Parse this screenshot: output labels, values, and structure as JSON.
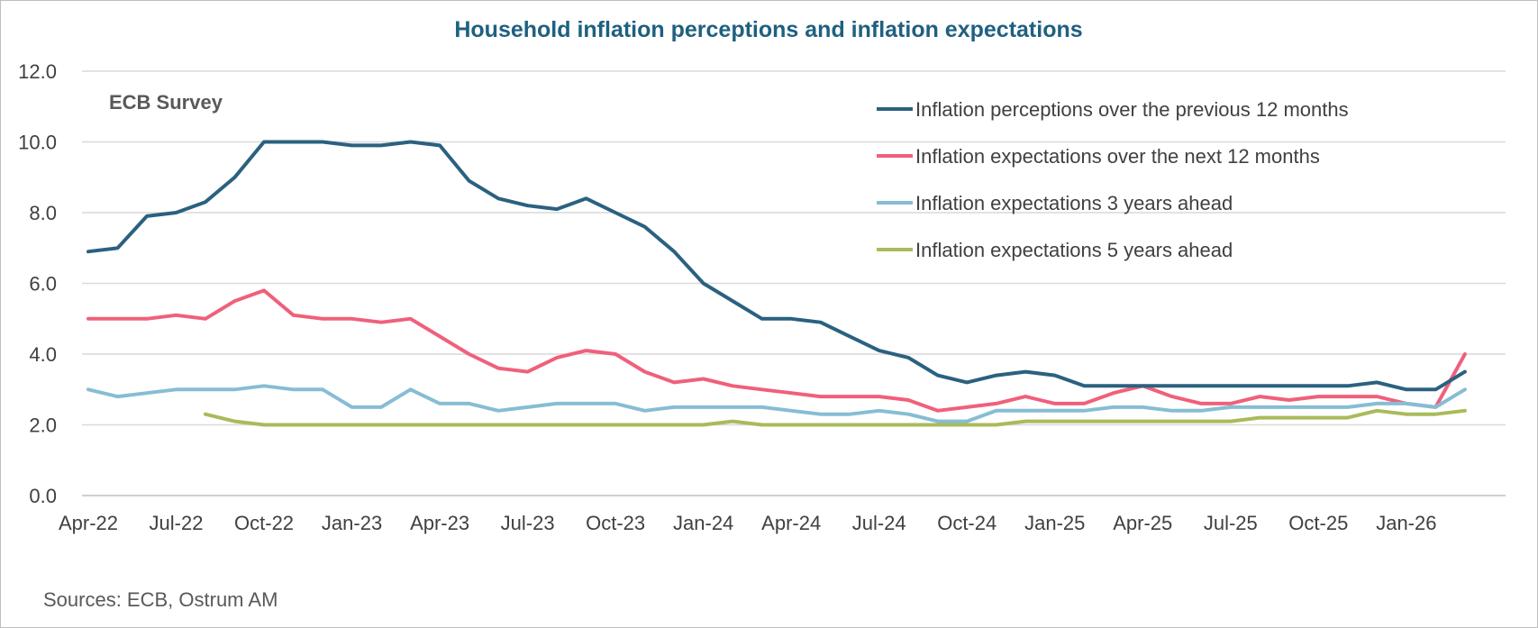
{
  "chart_data": {
    "type": "line",
    "title": "Household inflation perceptions and inflation expectations",
    "annotation": "ECB Survey",
    "source": "Sources: ECB, Ostrum AM",
    "title_color": "#1f6080",
    "ylim": [
      0,
      12
    ],
    "y_ticks": [
      "0.0",
      "2.0",
      "4.0",
      "6.0",
      "8.0",
      "10.0",
      "12.0"
    ],
    "grid": true,
    "legend_position": "top-right",
    "x_tick_labels": [
      {
        "index": 0,
        "label": "Apr-22"
      },
      {
        "index": 3,
        "label": "Jul-22"
      },
      {
        "index": 6,
        "label": "Oct-22"
      },
      {
        "index": 9,
        "label": "Jan-23"
      },
      {
        "index": 12,
        "label": "Apr-23"
      },
      {
        "index": 15,
        "label": "Jul-23"
      },
      {
        "index": 18,
        "label": "Oct-23"
      },
      {
        "index": 21,
        "label": "Jan-24"
      },
      {
        "index": 24,
        "label": "Apr-24"
      },
      {
        "index": 27,
        "label": "Jul-24"
      },
      {
        "index": 30,
        "label": "Oct-24"
      },
      {
        "index": 33,
        "label": "Jan-25"
      },
      {
        "index": 36,
        "label": "Apr-25"
      },
      {
        "index": 39,
        "label": "Jul-25"
      },
      {
        "index": 42,
        "label": "Oct-25"
      },
      {
        "index": 45,
        "label": "Jan-26"
      }
    ],
    "x": [
      "Apr-22",
      "May-22",
      "Jun-22",
      "Jul-22",
      "Aug-22",
      "Sep-22",
      "Oct-22",
      "Nov-22",
      "Dec-22",
      "Jan-23",
      "Feb-23",
      "Mar-23",
      "Apr-23",
      "May-23",
      "Jun-23",
      "Jul-23",
      "Aug-23",
      "Sep-23",
      "Oct-23",
      "Nov-23",
      "Dec-23",
      "Jan-24",
      "Feb-24",
      "Mar-24",
      "Apr-24",
      "May-24",
      "Jun-24",
      "Jul-24",
      "Aug-24",
      "Sep-24",
      "Oct-24",
      "Nov-24",
      "Dec-24",
      "Jan-25",
      "Feb-25",
      "Mar-25",
      "Apr-25",
      "May-25",
      "Jun-25",
      "Jul-25",
      "Aug-25",
      "Sep-25",
      "Oct-25",
      "Nov-25",
      "Dec-25",
      "Jan-26",
      "Feb-26",
      "Mar-26"
    ],
    "series": [
      {
        "name": "Inflation perceptions over the previous 12 months",
        "color": "#2a6180",
        "values": [
          6.9,
          7.0,
          7.9,
          8.0,
          8.3,
          9.0,
          10.0,
          10.0,
          10.0,
          9.9,
          9.9,
          10.0,
          9.9,
          8.9,
          8.4,
          8.2,
          8.1,
          8.4,
          8.0,
          7.6,
          6.9,
          6.0,
          5.5,
          5.0,
          5.0,
          4.9,
          4.5,
          4.1,
          3.9,
          3.4,
          3.2,
          3.4,
          3.5,
          3.4,
          3.1,
          3.1,
          3.1,
          3.1,
          3.1,
          3.1,
          3.1,
          3.1,
          3.1,
          3.1,
          3.2,
          3.0,
          3.0,
          3.5
        ]
      },
      {
        "name": "Inflation expectations over the next 12 months",
        "color": "#f0607a",
        "values": [
          5.0,
          5.0,
          5.0,
          5.1,
          5.0,
          5.5,
          5.8,
          5.1,
          5.0,
          5.0,
          4.9,
          5.0,
          4.5,
          4.0,
          3.6,
          3.5,
          3.9,
          4.1,
          4.0,
          3.5,
          3.2,
          3.3,
          3.1,
          3.0,
          2.9,
          2.8,
          2.8,
          2.8,
          2.7,
          2.4,
          2.5,
          2.6,
          2.8,
          2.6,
          2.6,
          2.9,
          3.1,
          2.8,
          2.6,
          2.6,
          2.8,
          2.7,
          2.8,
          2.8,
          2.8,
          2.6,
          2.5,
          4.0
        ]
      },
      {
        "name": "Inflation expectations 3 years ahead",
        "color": "#86bdd4",
        "values": [
          3.0,
          2.8,
          2.9,
          3.0,
          3.0,
          3.0,
          3.1,
          3.0,
          3.0,
          2.5,
          2.5,
          3.0,
          2.6,
          2.6,
          2.4,
          2.5,
          2.6,
          2.6,
          2.6,
          2.4,
          2.5,
          2.5,
          2.5,
          2.5,
          2.4,
          2.3,
          2.3,
          2.4,
          2.3,
          2.1,
          2.1,
          2.4,
          2.4,
          2.4,
          2.4,
          2.5,
          2.5,
          2.4,
          2.4,
          2.5,
          2.5,
          2.5,
          2.5,
          2.5,
          2.6,
          2.6,
          2.5,
          3.0
        ]
      },
      {
        "name": "Inflation expectations 5 years ahead",
        "color": "#a9bb5a",
        "values": [
          null,
          null,
          null,
          null,
          2.3,
          2.1,
          2.0,
          2.0,
          2.0,
          2.0,
          2.0,
          2.0,
          2.0,
          2.0,
          2.0,
          2.0,
          2.0,
          2.0,
          2.0,
          2.0,
          2.0,
          2.0,
          2.1,
          2.0,
          2.0,
          2.0,
          2.0,
          2.0,
          2.0,
          2.0,
          2.0,
          2.0,
          2.1,
          2.1,
          2.1,
          2.1,
          2.1,
          2.1,
          2.1,
          2.1,
          2.2,
          2.2,
          2.2,
          2.2,
          2.4,
          2.3,
          2.3,
          2.4
        ]
      }
    ]
  }
}
